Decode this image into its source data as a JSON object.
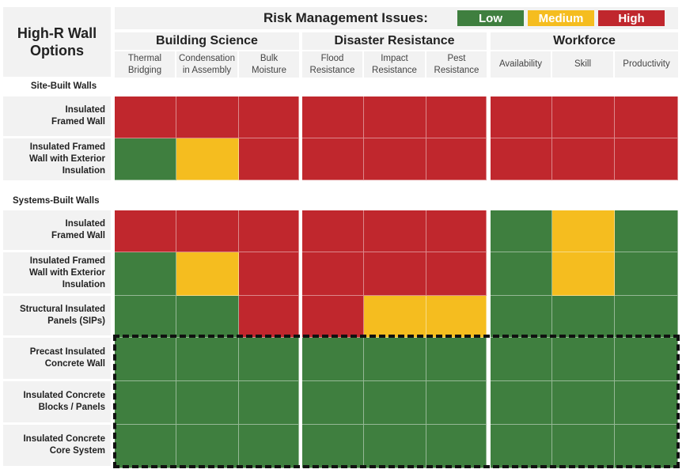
{
  "header": {
    "title": "High-R Wall Options",
    "legend_title": "Risk Management Issues:",
    "legend": [
      {
        "label": "Low",
        "color": "#3f7f3f"
      },
      {
        "label": "Medium",
        "color": "#f5bd1f"
      },
      {
        "label": "High",
        "color": "#c0272d"
      }
    ]
  },
  "groups": [
    {
      "label": "Building Science",
      "columns": [
        "Thermal Bridging",
        "Condensation in Assembly",
        "Bulk Moisture"
      ]
    },
    {
      "label": "Disaster Resistance",
      "columns": [
        "Flood Resistance",
        "Impact Resistance",
        "Pest Resistance"
      ]
    },
    {
      "label": "Workforce",
      "columns": [
        "Availability",
        "Skill",
        "Productivity"
      ]
    }
  ],
  "sections": [
    {
      "label": "Site-Built Walls",
      "rows": [
        {
          "label": "Insulated Framed Wall",
          "cells": [
            "High",
            "High",
            "High",
            "High",
            "High",
            "High",
            "High",
            "High",
            "High"
          ]
        },
        {
          "label": "Insulated Framed Wall with Exterior Insulation",
          "cells": [
            "Low",
            "Medium",
            "High",
            "High",
            "High",
            "High",
            "High",
            "High",
            "High"
          ]
        }
      ]
    },
    {
      "label": "Systems-Built Walls",
      "rows": [
        {
          "label": "Insulated Framed Wall",
          "cells": [
            "High",
            "High",
            "High",
            "High",
            "High",
            "High",
            "Low",
            "Medium",
            "Low"
          ]
        },
        {
          "label": "Insulated Framed Wall with Exterior Insulation",
          "cells": [
            "Low",
            "Medium",
            "High",
            "High",
            "High",
            "High",
            "Low",
            "Medium",
            "Low"
          ]
        },
        {
          "label": "Structural Insulated Panels (SIPs)",
          "cells": [
            "Low",
            "Low",
            "High",
            "High",
            "Medium",
            "Medium",
            "Low",
            "Low",
            "Low"
          ]
        },
        {
          "label": "Precast Insulated Concrete Wall",
          "cells": [
            "Low",
            "Low",
            "Low",
            "Low",
            "Low",
            "Low",
            "Low",
            "Low",
            "Low"
          ]
        },
        {
          "label": "Insulated Concrete Blocks / Panels",
          "cells": [
            "Low",
            "Low",
            "Low",
            "Low",
            "Low",
            "Low",
            "Low",
            "Low",
            "Low"
          ]
        },
        {
          "label": "Insulated Concrete Core System",
          "cells": [
            "Low",
            "Low",
            "Low",
            "Low",
            "Low",
            "Low",
            "Low",
            "Low",
            "Low"
          ]
        }
      ]
    }
  ],
  "colors": {
    "Low": "#3f7f3f",
    "Medium": "#f5bd1f",
    "High": "#c0272d"
  }
}
